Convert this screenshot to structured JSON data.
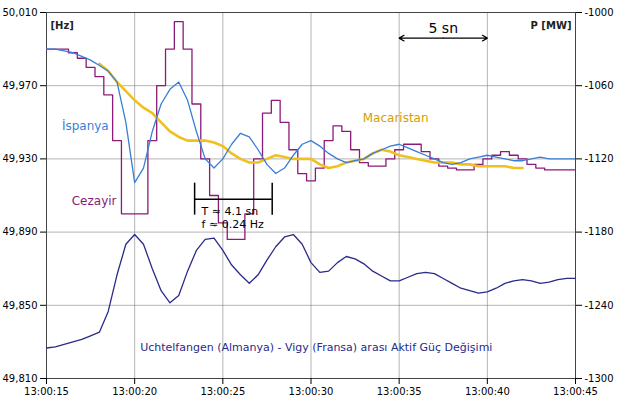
{
  "chart_data": {
    "type": "line",
    "ylabel": "[Hz]",
    "y2label": "P [MW]",
    "grid": true,
    "xlim": [
      15,
      45
    ],
    "xticks": [
      {
        "value": 15,
        "label": "13:00:15"
      },
      {
        "value": 20,
        "label": "13:00:20"
      },
      {
        "value": 25,
        "label": "13:00:25"
      },
      {
        "value": 30,
        "label": "13:00:30"
      },
      {
        "value": 35,
        "label": "13:00:35"
      },
      {
        "value": 40,
        "label": "13:00:40"
      },
      {
        "value": 45,
        "label": "13:00:45"
      }
    ],
    "ylim": [
      49.81,
      50.01
    ],
    "yticks": [
      {
        "value": 49.81,
        "label": "49,810"
      },
      {
        "value": 49.85,
        "label": "49,850"
      },
      {
        "value": 49.89,
        "label": "49,890"
      },
      {
        "value": 49.93,
        "label": "49,930"
      },
      {
        "value": 49.97,
        "label": "49,970"
      },
      {
        "value": 50.01,
        "label": "50,010"
      }
    ],
    "y2lim": [
      -1300,
      -1000
    ],
    "y2ticks": [
      -1300,
      -1240,
      -1180,
      -1120,
      -1060,
      -1000
    ],
    "x": [
      15,
      15.5,
      16,
      16.5,
      17,
      17.5,
      18,
      18.5,
      19,
      19.5,
      20,
      20.5,
      21,
      21.5,
      22,
      22.5,
      23,
      23.5,
      24,
      24.5,
      25,
      25.5,
      26,
      26.5,
      27,
      27.5,
      28,
      28.5,
      29,
      29.5,
      30,
      30.5,
      31,
      31.5,
      32,
      32.5,
      33,
      33.5,
      34,
      34.5,
      35,
      35.5,
      36,
      36.5,
      37,
      37.5,
      38,
      38.5,
      39,
      39.5,
      40,
      40.5,
      41,
      41.5,
      42,
      42.5,
      43,
      43.5,
      44,
      44.5,
      45
    ],
    "series": [
      {
        "name": "Cezayir",
        "color": "#8b1a7a",
        "type": "step",
        "values": [
          49.99,
          49.99,
          49.99,
          49.988,
          49.985,
          49.98,
          49.975,
          49.965,
          49.94,
          49.9,
          49.9,
          49.9,
          49.94,
          49.97,
          49.99,
          50.005,
          49.99,
          49.96,
          49.93,
          49.91,
          49.895,
          49.886,
          49.886,
          49.9,
          49.93,
          49.955,
          49.962,
          49.95,
          49.935,
          49.922,
          49.918,
          49.925,
          49.94,
          49.948,
          49.945,
          49.935,
          49.928,
          49.926,
          49.926,
          49.93,
          49.935,
          49.938,
          49.938,
          49.934,
          49.93,
          49.926,
          49.925,
          49.924,
          49.924,
          49.927,
          49.93,
          49.932,
          49.934,
          49.932,
          49.93,
          49.927,
          49.925,
          49.924,
          49.924,
          49.924,
          49.924
        ]
      },
      {
        "name": "Macaristan",
        "color": "#f0c020",
        "values": [
          null,
          null,
          null,
          null,
          null,
          null,
          49.982,
          49.978,
          49.972,
          49.967,
          49.962,
          49.958,
          49.955,
          49.95,
          49.945,
          49.942,
          49.94,
          49.94,
          49.94,
          49.939,
          49.937,
          49.933,
          49.93,
          49.928,
          49.928,
          49.93,
          49.932,
          49.931,
          49.93,
          49.93,
          49.93,
          49.927,
          49.925,
          49.926,
          49.928,
          49.929,
          49.93,
          49.933,
          49.935,
          49.934,
          49.932,
          49.931,
          49.93,
          49.929,
          49.928,
          49.928,
          49.928,
          49.927,
          49.927,
          49.926,
          49.926,
          49.926,
          49.926,
          49.925,
          49.925,
          null,
          null,
          null,
          null,
          null,
          null
        ]
      },
      {
        "name": "İspanya",
        "color": "#3a7fd5",
        "values": [
          49.99,
          49.99,
          49.989,
          49.988,
          49.986,
          49.984,
          49.981,
          49.978,
          49.972,
          49.95,
          49.917,
          49.925,
          49.945,
          49.96,
          49.968,
          49.972,
          49.962,
          49.945,
          49.93,
          49.925,
          49.93,
          49.938,
          49.944,
          49.942,
          49.935,
          49.927,
          49.922,
          49.925,
          49.932,
          49.938,
          49.94,
          49.937,
          49.933,
          49.93,
          49.928,
          49.929,
          49.93,
          49.933,
          49.935,
          49.937,
          49.938,
          49.936,
          49.934,
          49.932,
          49.93,
          49.928,
          49.927,
          49.928,
          49.93,
          49.931,
          49.932,
          49.931,
          49.93,
          49.929,
          49.929,
          49.93,
          49.931,
          49.93,
          49.93,
          49.93,
          49.93
        ]
      },
      {
        "name": "Uchtelfangen (Almanya) - Vigy (Fransa) arası Aktif Güç Değişimi",
        "color": "#2a2a8a",
        "axis": "y2",
        "values": [
          -1275,
          -1274,
          -1272,
          -1270,
          -1268,
          -1265,
          -1262,
          -1245,
          -1215,
          -1190,
          -1182,
          -1190,
          -1210,
          -1228,
          -1238,
          -1232,
          -1212,
          -1195,
          -1186,
          -1185,
          -1195,
          -1207,
          -1215,
          -1222,
          -1215,
          -1203,
          -1192,
          -1184,
          -1182,
          -1190,
          -1205,
          -1213,
          -1212,
          -1205,
          -1200,
          -1202,
          -1206,
          -1212,
          -1216,
          -1220,
          -1220,
          -1217,
          -1214,
          -1213,
          -1214,
          -1218,
          -1222,
          -1226,
          -1228,
          -1230,
          -1229,
          -1226,
          -1222,
          -1220,
          -1219,
          -1220,
          -1222,
          -1221,
          -1219,
          -1218,
          -1218
        ]
      }
    ],
    "annotations": [
      {
        "type": "text",
        "text": "İspanya",
        "x": 17.2,
        "y": 49.948,
        "color": "#3a7fd5"
      },
      {
        "type": "text",
        "text": "Cezayir",
        "x": 17.7,
        "y": 49.907,
        "color": "#8b1a7a"
      },
      {
        "type": "text",
        "text": "Macaristan",
        "x": 34.8,
        "y": 49.952,
        "color": "#d4a000"
      },
      {
        "type": "text",
        "text": "Uchtelfangen (Almanya) - Vigy (Fransa) arası Aktif Güç Değişimi",
        "x": 30.3,
        "y": 49.827,
        "color": "#2a2a8a"
      },
      {
        "type": "span",
        "text": "5 sn",
        "x1": 35,
        "x2": 40,
        "y": 49.996
      },
      {
        "type": "period",
        "labels": [
          "T ≈ 4.1 sn",
          "f ≈ 0.24 Hz"
        ],
        "x1": 23.4,
        "x2": 27.8,
        "y": 49.908
      }
    ]
  }
}
